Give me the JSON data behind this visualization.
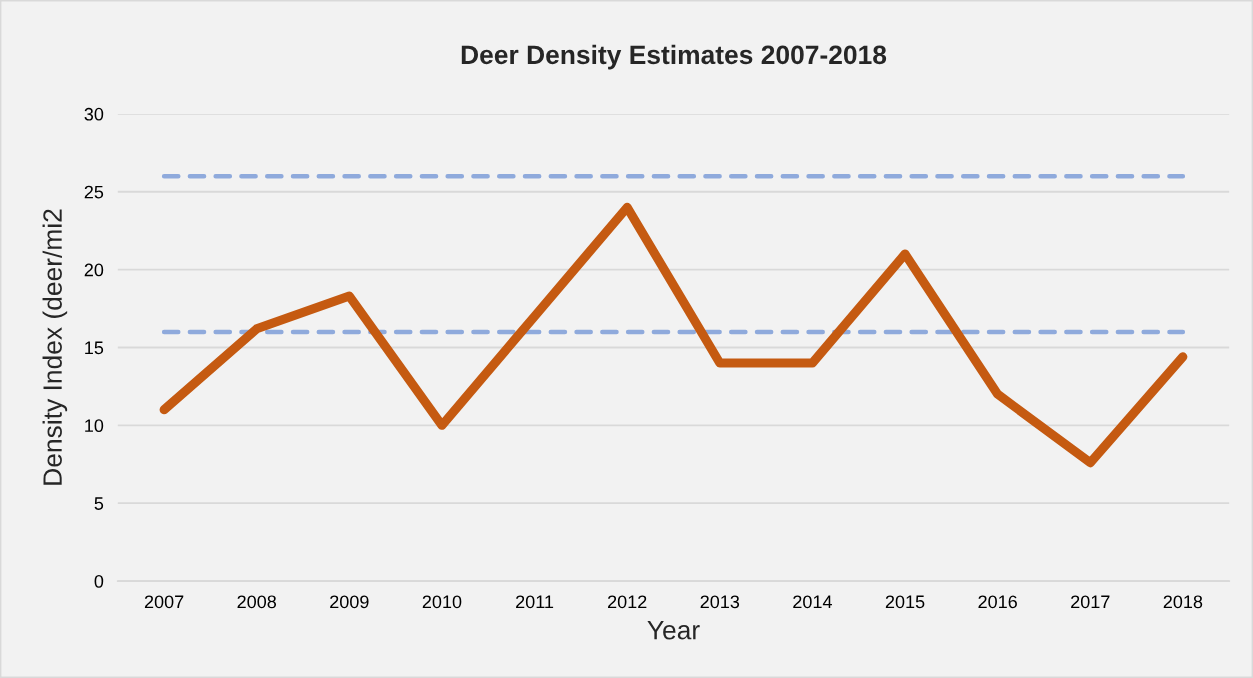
{
  "chart_data": {
    "type": "line",
    "title": "Deer Density Estimates 2007-2018",
    "xlabel": "Year",
    "ylabel": "Density Index (deer/mi2",
    "categories": [
      "2007",
      "2008",
      "2009",
      "2010",
      "2011",
      "2012",
      "2013",
      "2014",
      "2015",
      "2016",
      "2017",
      "2018"
    ],
    "series": [
      {
        "color": "#c55a11",
        "values": [
          11,
          16.2,
          18.3,
          10,
          17,
          24,
          14,
          14,
          21,
          12,
          7.6,
          14.4
        ]
      }
    ],
    "ref_lines": [
      {
        "axis": "y",
        "value": 26,
        "color": "#8faadc",
        "line_style": "dashed"
      },
      {
        "axis": "y",
        "value": 16,
        "color": "#8faadc",
        "line_style": "dashed"
      }
    ],
    "ylim": [
      0,
      30
    ],
    "yticks": [
      0,
      5,
      10,
      15,
      20,
      25,
      30
    ],
    "grid": "y",
    "legend": false,
    "marker": "none"
  }
}
